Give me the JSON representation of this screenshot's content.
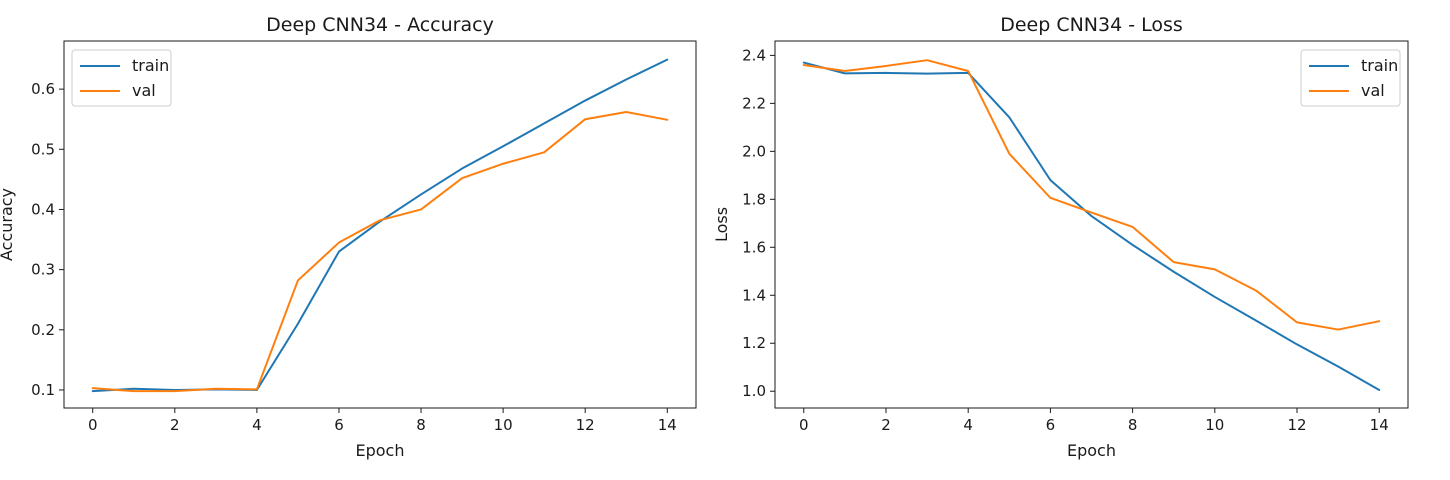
{
  "colors": {
    "train": "#1f77b4",
    "val": "#ff7f0e"
  },
  "chart_data": [
    {
      "type": "line",
      "title": "Deep CNN34 - Accuracy",
      "xlabel": "Epoch",
      "ylabel": "Accuracy",
      "xlim": [
        -0.7,
        14.7
      ],
      "ylim": [
        0.07,
        0.68
      ],
      "xticks": [
        0,
        2,
        4,
        6,
        8,
        10,
        12,
        14
      ],
      "yticks": [
        0.1,
        0.2,
        0.3,
        0.4,
        0.5,
        0.6
      ],
      "yticklabels": [
        "0.1",
        "0.2",
        "0.3",
        "0.4",
        "0.5",
        "0.6"
      ],
      "grid": false,
      "legend": "upper-left",
      "x": [
        0,
        1,
        2,
        3,
        4,
        5,
        6,
        7,
        8,
        9,
        10,
        11,
        12,
        13,
        14
      ],
      "series": [
        {
          "name": "train",
          "color": "#1f77b4",
          "values": [
            0.098,
            0.102,
            0.1,
            0.101,
            0.1,
            0.21,
            0.33,
            0.38,
            0.425,
            0.468,
            0.505,
            0.543,
            0.581,
            0.616,
            0.649
          ]
        },
        {
          "name": "val",
          "color": "#ff7f0e",
          "values": [
            0.103,
            0.098,
            0.098,
            0.102,
            0.101,
            0.282,
            0.345,
            0.382,
            0.4,
            0.452,
            0.476,
            0.495,
            0.55,
            0.562,
            0.549
          ]
        }
      ]
    },
    {
      "type": "line",
      "title": "Deep CNN34 - Loss",
      "xlabel": "Epoch",
      "ylabel": "Loss",
      "xlim": [
        -0.7,
        14.7
      ],
      "ylim": [
        0.93,
        2.46
      ],
      "xticks": [
        0,
        2,
        4,
        6,
        8,
        10,
        12,
        14
      ],
      "yticks": [
        1.0,
        1.2,
        1.4,
        1.6,
        1.8,
        2.0,
        2.2,
        2.4
      ],
      "yticklabels": [
        "1.0",
        "1.2",
        "1.4",
        "1.6",
        "1.8",
        "2.0",
        "2.2",
        "2.4"
      ],
      "grid": false,
      "legend": "upper-right",
      "x": [
        0,
        1,
        2,
        3,
        4,
        5,
        6,
        7,
        8,
        9,
        10,
        11,
        12,
        13,
        14
      ],
      "series": [
        {
          "name": "train",
          "color": "#1f77b4",
          "values": [
            2.37,
            2.325,
            2.327,
            2.324,
            2.327,
            2.142,
            1.88,
            1.73,
            1.61,
            1.498,
            1.393,
            1.295,
            1.195,
            1.103,
            1.005
          ]
        },
        {
          "name": "val",
          "color": "#ff7f0e",
          "values": [
            2.36,
            2.335,
            2.356,
            2.38,
            2.335,
            1.99,
            1.806,
            1.745,
            1.685,
            1.538,
            1.508,
            1.42,
            1.287,
            1.257,
            1.292
          ]
        }
      ]
    }
  ]
}
